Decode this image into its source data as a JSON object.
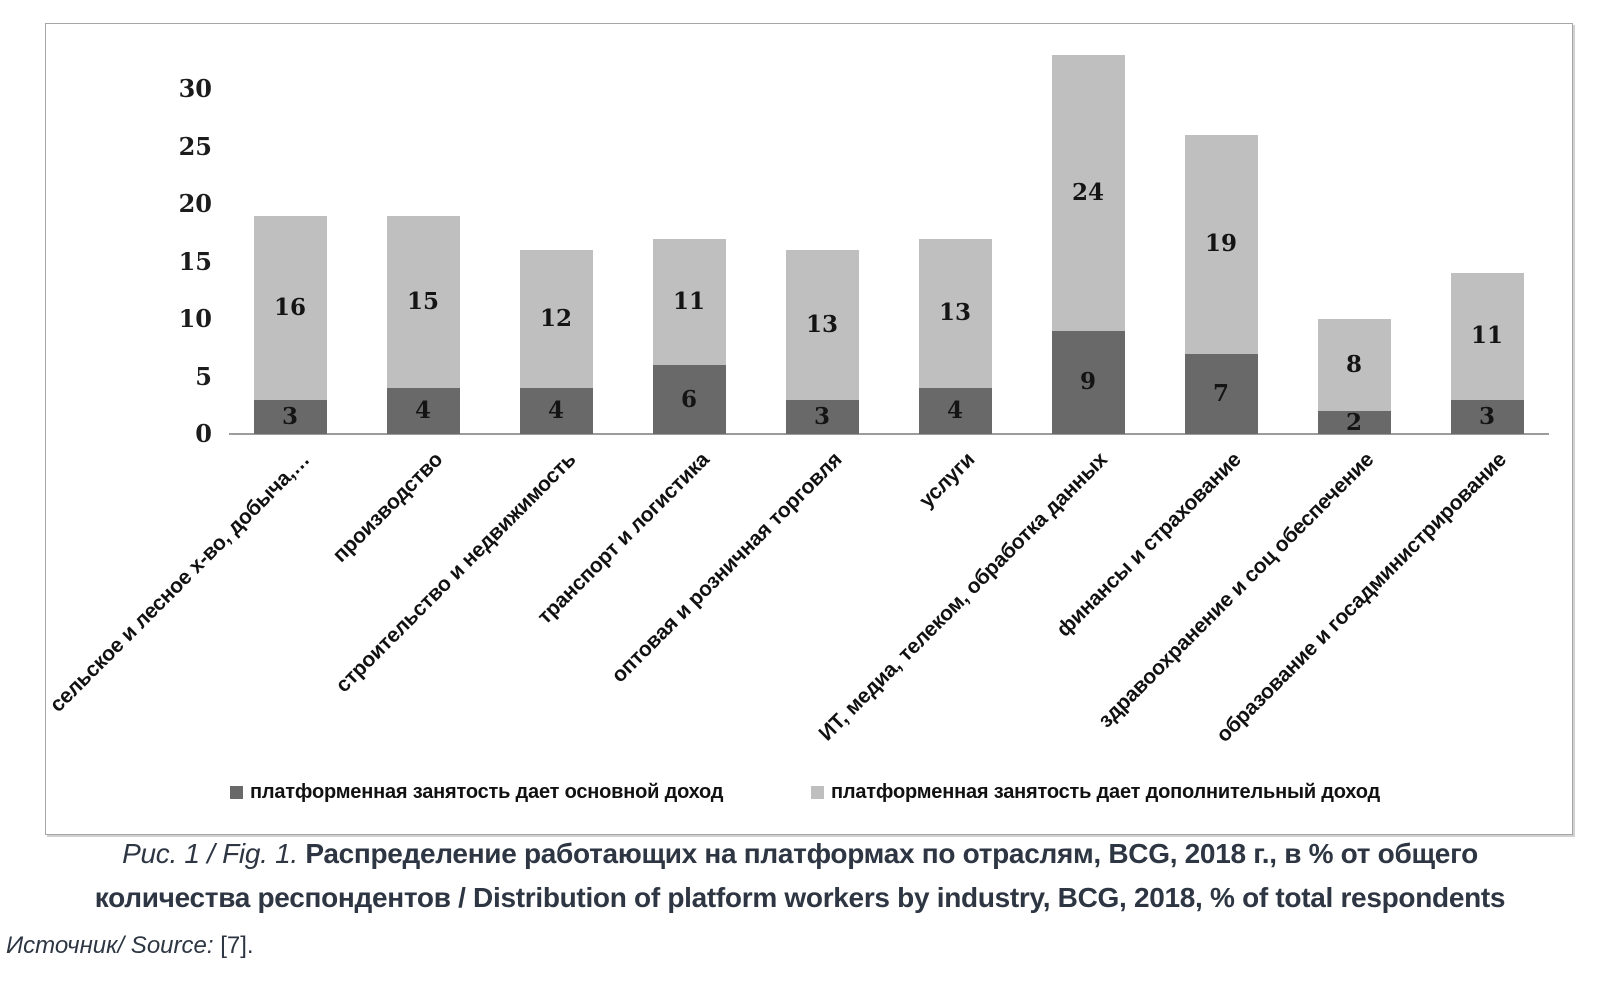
{
  "chart_data": {
    "type": "bar",
    "stacked": true,
    "grid": false,
    "legend_position": "bottom",
    "y_ticks": [
      0,
      5,
      10,
      15,
      20,
      25,
      30
    ],
    "ylim": [
      0,
      35
    ],
    "categories": [
      "сельское и лесное х-во, добыча,…",
      "производство",
      "строительство и недвижимость",
      "транспорт и логистика",
      "оптовая и розничная торговля",
      "услуги",
      "ИТ, медиа, телеком, обработка данных",
      "финансы и страхование",
      "здравоохранение и соц обеспечение",
      "образование и госадминистрирование"
    ],
    "series": [
      {
        "name": "платформенная занятость дает основной доход",
        "color": "#696969",
        "values": [
          3,
          4,
          4,
          6,
          3,
          4,
          9,
          7,
          2,
          3
        ]
      },
      {
        "name": "платформенная занятость дает дополнительный доход",
        "color": "#bfbfbf",
        "values": [
          16,
          15,
          12,
          11,
          13,
          13,
          24,
          19,
          8,
          11
        ]
      }
    ],
    "totals": [
      19,
      19,
      16,
      17,
      16,
      17,
      33,
      26,
      10,
      14
    ]
  },
  "caption": {
    "figure_label": "Рис. 1 / Fig. 1.",
    "title_line1": "Распределение работающих на платформах по отраслям, BCG, 2018 г., в % от общего",
    "title_line2": "количества респондентов / Distribution of platform workers by industry, BCG, 2018, % of total respondents",
    "source_label": "Источник/ Source:",
    "source_ref": "[7]."
  },
  "colors": {
    "bar_main_income": "#696969",
    "bar_additional_income": "#bfbfbf",
    "axis_line": "#9c9c9c",
    "caption_text": "#2d3642",
    "box_border": "#a6a6a6"
  }
}
